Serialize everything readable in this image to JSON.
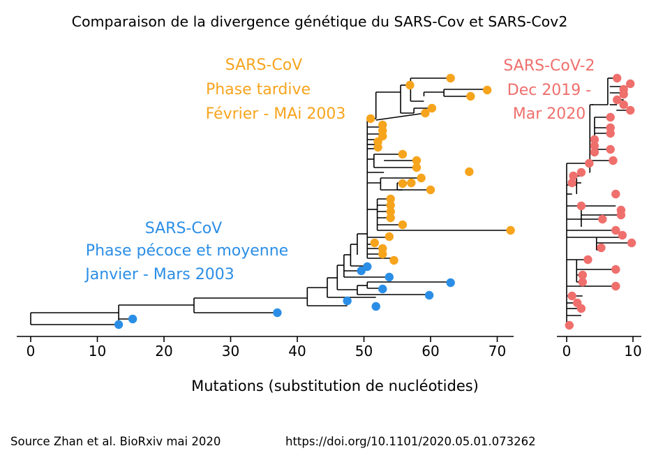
{
  "title": "Comparaison de la divergence génétique du SARS-Cov et SARS-Cov2",
  "source": {
    "label": "Source Zhan et al. BioRxiv mai 2020",
    "doi": "https://doi.org/10.1101/2020.05.01.073262"
  },
  "colors": {
    "early": "#2b8ee6",
    "late": "#f7a41d",
    "cov2": "#ef6f6c"
  },
  "chart_data": [
    {
      "type": "scatter",
      "subtype": "phylogenetic-tree",
      "xlabel": "Mutations (substitution de nucléotides)",
      "xlim": [
        -2,
        73
      ],
      "xticks": [
        0,
        10,
        20,
        30,
        40,
        50,
        60,
        70
      ],
      "annotations": {
        "late": [
          "SARS-CoV",
          "Phase tardive",
          "Février - MAi 2003"
        ],
        "early": [
          "SARS-CoV",
          "Phase pécoce et moyenne",
          "Janvier - Mars 2003"
        ]
      },
      "series": [
        {
          "group": "early",
          "values": [
            13.2,
            15.3,
            37.0,
            47.5,
            51.8,
            59.8,
            52.8,
            63.0,
            49.6,
            53.8,
            50.5
          ]
        },
        {
          "group": "late",
          "values": [
            63.0,
            68.5,
            66.0,
            56.9,
            60.2,
            59.2,
            52.8,
            52.8,
            52.8,
            52.1,
            52.1,
            55.8,
            57.9,
            57.9,
            65.8,
            58.6,
            55.8,
            60.0,
            57.1,
            54.0,
            54.0,
            54.0,
            54.0,
            55.8,
            72.0,
            53.8,
            51.6,
            52.8,
            52.8,
            54.5,
            51.0
          ]
        }
      ]
    },
    {
      "type": "scatter",
      "subtype": "phylogenetic-tree",
      "xlim": [
        -1,
        11
      ],
      "xticks": [
        0,
        10
      ],
      "annotations": {
        "cov2": [
          "SARS-CoV-2",
          "Dec 2019 -",
          "Mar 2020"
        ]
      },
      "series": [
        {
          "group": "cov2",
          "values": [
            7.6,
            9.6,
            8.6,
            8.6,
            7.6,
            8.6,
            9.6,
            6.6,
            6.6,
            6.6,
            4.2,
            4.2,
            6.6,
            4.2,
            7.0,
            3.4,
            2.2,
            1.0,
            0.8,
            7.4,
            2.2,
            8.2,
            8.2,
            5.4,
            7.4,
            8.4,
            9.8,
            5.2,
            3.2,
            7.4,
            2.4,
            7.4,
            2.4,
            0.8,
            1.6,
            2.2,
            0.4
          ]
        }
      ]
    }
  ]
}
